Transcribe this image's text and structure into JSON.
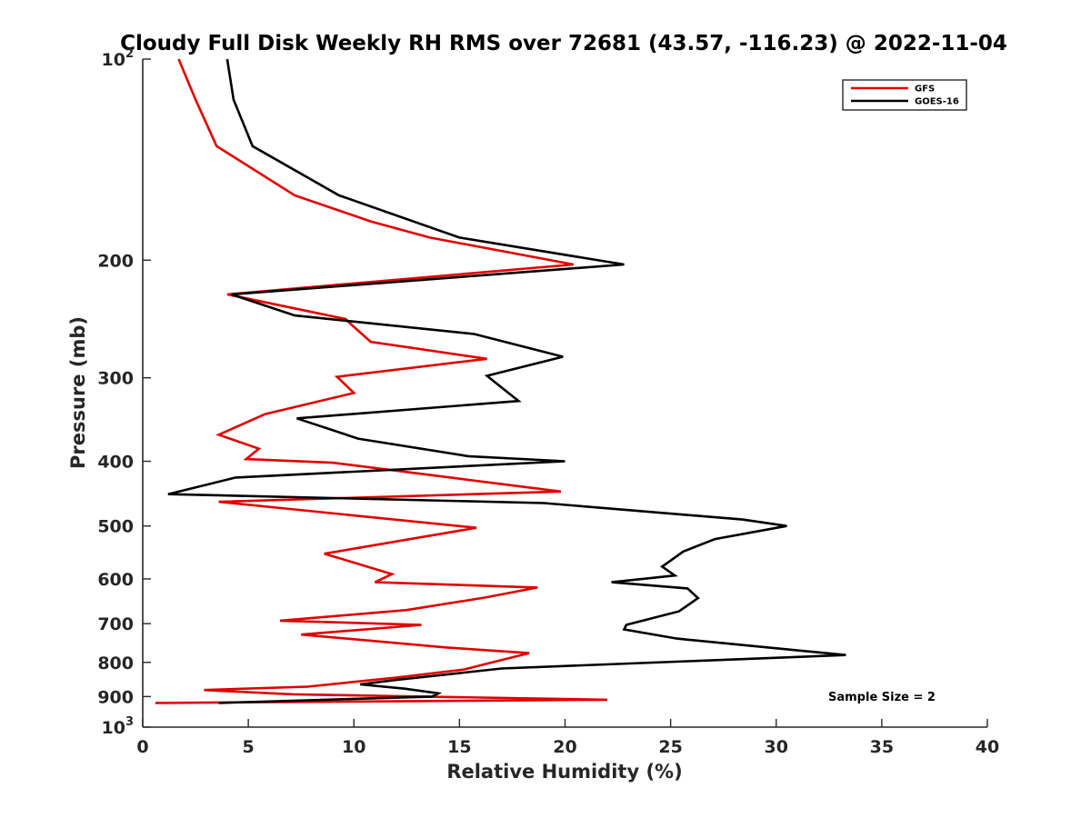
{
  "chart_data": {
    "type": "line",
    "title": "Cloudy Full Disk Weekly RH RMS over 72681 (43.57, -116.23) @ 2022-11-04",
    "xlabel": "Relative Humidity (%)",
    "ylabel": "Pressure (mb)",
    "xlim": [
      0,
      40
    ],
    "ylim": [
      100,
      1000
    ],
    "y_scale": "log",
    "y_reversed": true,
    "x_ticks": [
      "0",
      "5",
      "10",
      "15",
      "20",
      "25",
      "30",
      "35",
      "40"
    ],
    "y_ticks": [
      {
        "value": 100,
        "base": "10",
        "exp": "2"
      },
      {
        "value": 200,
        "label": "200"
      },
      {
        "value": 300,
        "label": "300"
      },
      {
        "value": 400,
        "label": "400"
      },
      {
        "value": 500,
        "label": "500"
      },
      {
        "value": 600,
        "label": "600"
      },
      {
        "value": 700,
        "label": "700"
      },
      {
        "value": 800,
        "label": "800"
      },
      {
        "value": 900,
        "label": "900"
      },
      {
        "value": 1000,
        "base": "10",
        "exp": "3"
      }
    ],
    "grid": false,
    "legend_position": "top-right",
    "annotation": "Sample Size = 2",
    "series": [
      {
        "name": "GFS",
        "color": "#e00000",
        "x": [
          1.7,
          2.5,
          3.5,
          7.2,
          10.8,
          13.6,
          20.4,
          4.0,
          9.6,
          9.9,
          10.8,
          16.3,
          9.2,
          10.0,
          5.8,
          3.6,
          5.5,
          4.9,
          9.0,
          14.8,
          19.8,
          3.6,
          15.8,
          8.6,
          11.8,
          11.0,
          18.7,
          16.2,
          12.5,
          6.5,
          13.2,
          7.5,
          14.4,
          18.3,
          16.4,
          15.2,
          12.0,
          7.8,
          2.9,
          7.1,
          22.0,
          0.6
        ],
        "y": [
          100,
          115,
          135,
          160,
          175,
          185,
          203,
          225,
          245,
          250,
          265,
          281,
          299,
          316,
          340,
          365,
          383,
          397,
          402,
          424,
          444,
          460,
          503,
          550,
          590,
          607,
          618,
          640,
          668,
          693,
          703,
          727,
          760,
          775,
          802,
          820,
          843,
          870,
          880,
          893,
          910,
          920
        ]
      },
      {
        "name": "GOES-16",
        "color": "#000000",
        "x": [
          4.0,
          4.3,
          5.2,
          9.3,
          15.0,
          22.8,
          4.2,
          7.2,
          15.7,
          19.9,
          16.3,
          17.8,
          7.3,
          10.2,
          15.4,
          20.0,
          4.4,
          1.2,
          19.0,
          28.4,
          30.5,
          27.1,
          25.6,
          24.6,
          25.2,
          22.2,
          25.8,
          26.3,
          25.4,
          22.9,
          22.8,
          25.3,
          30.9,
          33.3,
          17.0,
          12.0,
          10.3,
          12.4,
          14.0,
          13.7,
          3.6
        ],
        "y": [
          100,
          115,
          135,
          160,
          185,
          203,
          225,
          242,
          258,
          279,
          298,
          325,
          345,
          370,
          393,
          400,
          423,
          448,
          462,
          489,
          500,
          523,
          546,
          575,
          593,
          607,
          620,
          641,
          671,
          703,
          714,
          737,
          767,
          780,
          817,
          850,
          863,
          876,
          890,
          900,
          920
        ]
      }
    ]
  }
}
